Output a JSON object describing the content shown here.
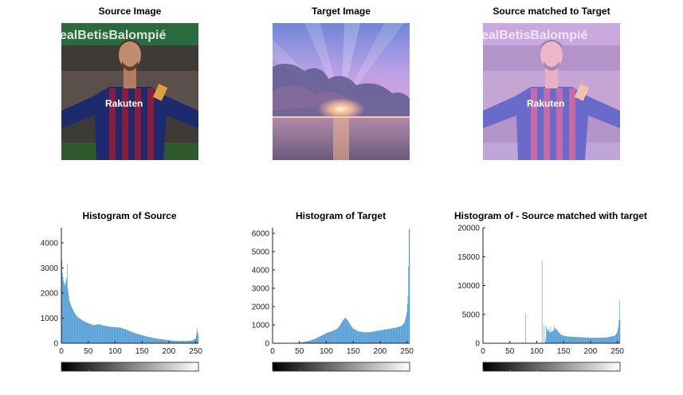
{
  "images": [
    {
      "title": "Source Image",
      "logo_text": "Rakuten",
      "banner_text": "ealBetisBalompié"
    },
    {
      "title": "Target Image"
    },
    {
      "title": "Source matched to Target",
      "logo_text": "Rakuten",
      "banner_text": "ealBetisBalompié"
    }
  ],
  "colors": {
    "bar": "#3a8fd0",
    "axis": "#222222"
  },
  "chart_data": [
    {
      "type": "bar",
      "title": "Histogram of Source",
      "xlim": [
        0,
        255
      ],
      "ylim": [
        0,
        4600
      ],
      "xticks": [
        0,
        50,
        100,
        150,
        200,
        250
      ],
      "yticks": [
        0,
        1000,
        2000,
        3000,
        4000
      ],
      "profile": [
        [
          0,
          4550
        ],
        [
          1,
          3300
        ],
        [
          2,
          2800
        ],
        [
          4,
          2500
        ],
        [
          7,
          2300
        ],
        [
          10,
          2600
        ],
        [
          11,
          3150
        ],
        [
          12,
          2200
        ],
        [
          15,
          1700
        ],
        [
          20,
          1400
        ],
        [
          25,
          1200
        ],
        [
          30,
          1050
        ],
        [
          40,
          900
        ],
        [
          50,
          800
        ],
        [
          60,
          720
        ],
        [
          70,
          760
        ],
        [
          80,
          700
        ],
        [
          90,
          660
        ],
        [
          100,
          640
        ],
        [
          110,
          620
        ],
        [
          120,
          550
        ],
        [
          130,
          460
        ],
        [
          140,
          380
        ],
        [
          150,
          320
        ],
        [
          160,
          260
        ],
        [
          170,
          220
        ],
        [
          180,
          180
        ],
        [
          190,
          150
        ],
        [
          200,
          120
        ],
        [
          210,
          100
        ],
        [
          220,
          90
        ],
        [
          230,
          90
        ],
        [
          240,
          100
        ],
        [
          245,
          120
        ],
        [
          250,
          200
        ],
        [
          253,
          580
        ],
        [
          255,
          300
        ]
      ]
    },
    {
      "type": "bar",
      "title": "Histogram of Target",
      "xlim": [
        0,
        255
      ],
      "ylim": [
        0,
        6300
      ],
      "xticks": [
        0,
        50,
        100,
        150,
        200,
        250
      ],
      "yticks": [
        0,
        1000,
        2000,
        3000,
        4000,
        5000,
        6000
      ],
      "profile": [
        [
          0,
          0
        ],
        [
          40,
          0
        ],
        [
          50,
          30
        ],
        [
          60,
          80
        ],
        [
          70,
          150
        ],
        [
          80,
          250
        ],
        [
          90,
          400
        ],
        [
          100,
          550
        ],
        [
          110,
          650
        ],
        [
          120,
          780
        ],
        [
          125,
          950
        ],
        [
          130,
          1200
        ],
        [
          135,
          1400
        ],
        [
          140,
          1250
        ],
        [
          145,
          1000
        ],
        [
          150,
          800
        ],
        [
          160,
          650
        ],
        [
          170,
          600
        ],
        [
          180,
          600
        ],
        [
          190,
          650
        ],
        [
          200,
          700
        ],
        [
          210,
          750
        ],
        [
          220,
          800
        ],
        [
          230,
          850
        ],
        [
          240,
          950
        ],
        [
          245,
          1100
        ],
        [
          248,
          1400
        ],
        [
          250,
          1700
        ],
        [
          252,
          2600
        ],
        [
          253,
          4200
        ],
        [
          254,
          6200
        ],
        [
          255,
          6300
        ]
      ]
    },
    {
      "type": "bar",
      "title": "Histogram of - Source matched with target",
      "xlim": [
        0,
        255
      ],
      "ylim": [
        0,
        20000
      ],
      "xticks": [
        0,
        50,
        100,
        150,
        200,
        250
      ],
      "yticks": [
        0,
        5000,
        10000,
        15000,
        20000
      ],
      "profile": [
        [
          0,
          0
        ],
        [
          115,
          0
        ],
        [
          116,
          300
        ],
        [
          120,
          2600
        ],
        [
          125,
          1800
        ],
        [
          130,
          2100
        ],
        [
          135,
          2600
        ],
        [
          140,
          2000
        ],
        [
          145,
          1500
        ],
        [
          150,
          1300
        ],
        [
          160,
          1150
        ],
        [
          170,
          1100
        ],
        [
          180,
          1050
        ],
        [
          190,
          1000
        ],
        [
          200,
          950
        ],
        [
          210,
          950
        ],
        [
          220,
          950
        ],
        [
          230,
          1000
        ],
        [
          240,
          1200
        ],
        [
          245,
          1300
        ],
        [
          248,
          1600
        ],
        [
          250,
          2000
        ],
        [
          252,
          3000
        ],
        [
          253,
          4000
        ],
        [
          254,
          7500
        ],
        [
          255,
          4000
        ]
      ],
      "spikes": [
        [
          79,
          5200
        ],
        [
          110,
          14300
        ],
        [
          114,
          3200
        ],
        [
          118,
          3000
        ],
        [
          126,
          2900
        ],
        [
          133,
          3100
        ]
      ]
    }
  ]
}
